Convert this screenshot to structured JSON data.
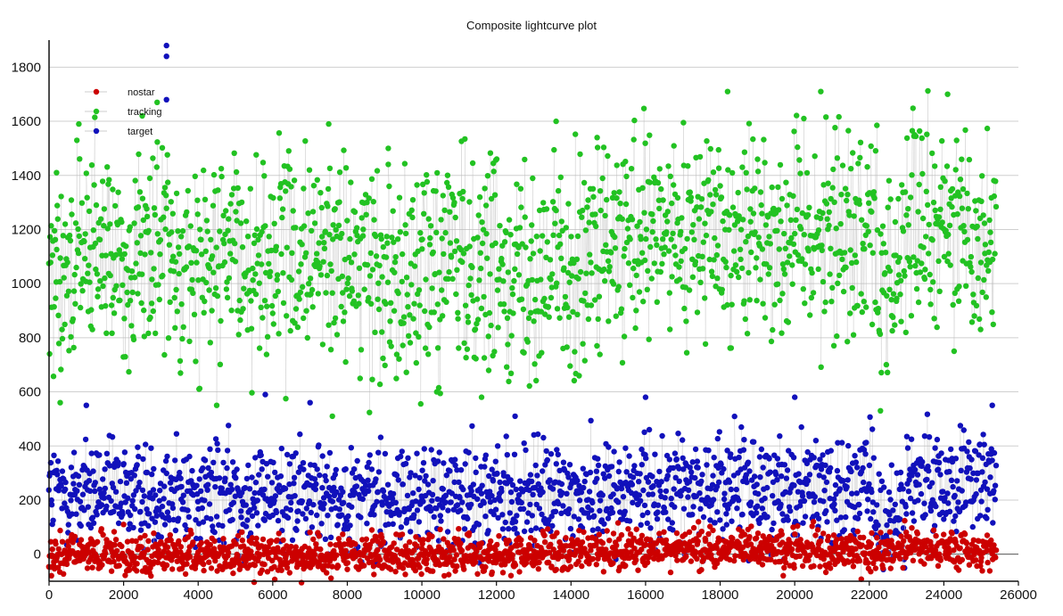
{
  "chart_data": {
    "type": "scatter",
    "title": "Composite lightcurve plot",
    "xlabel": "",
    "ylabel": "",
    "xlim": [
      0,
      26000
    ],
    "ylim": [
      -100,
      1900
    ],
    "x_ticks": [
      0,
      2000,
      4000,
      6000,
      8000,
      10000,
      12000,
      14000,
      16000,
      18000,
      20000,
      22000,
      24000,
      26000
    ],
    "y_ticks": [
      0,
      200,
      400,
      600,
      800,
      1000,
      1200,
      1400,
      1600,
      1800
    ],
    "grid": "horizontal",
    "legend_position": "top-left",
    "x_range_points": [
      0,
      25400
    ],
    "series": [
      {
        "name": "nostar",
        "color": "#cc0000",
        "profile": [
          [
            0,
            0
          ],
          [
            4000,
            0
          ],
          [
            8000,
            -5
          ],
          [
            12000,
            0
          ],
          [
            16000,
            15
          ],
          [
            20000,
            20
          ],
          [
            22000,
            5
          ],
          [
            23500,
            30
          ],
          [
            25400,
            10
          ]
        ],
        "spread": 35,
        "highlights": [
          [
            10600,
            -80
          ],
          [
            2000,
            110
          ],
          [
            20500,
            120
          ]
        ]
      },
      {
        "name": "tracking",
        "color": "#22c222",
        "profile": [
          [
            0,
            1080
          ],
          [
            2000,
            1110
          ],
          [
            4000,
            1100
          ],
          [
            6000,
            1090
          ],
          [
            8000,
            1080
          ],
          [
            10000,
            1070
          ],
          [
            12000,
            1080
          ],
          [
            14000,
            1060
          ],
          [
            15500,
            1120
          ],
          [
            17000,
            1180
          ],
          [
            19000,
            1200
          ],
          [
            21000,
            1190
          ],
          [
            22000,
            1200
          ],
          [
            22500,
            1000
          ],
          [
            23000,
            1200
          ],
          [
            25400,
            1170
          ]
        ],
        "spread": 190,
        "highlights": [
          [
            200,
            1410
          ],
          [
            300,
            560
          ],
          [
            800,
            1590
          ],
          [
            2500,
            1620
          ],
          [
            2900,
            1670
          ],
          [
            7500,
            1590
          ],
          [
            9100,
            1500
          ],
          [
            13600,
            1600
          ],
          [
            14700,
            1540
          ],
          [
            18200,
            1710
          ],
          [
            20700,
            1710
          ],
          [
            24100,
            1700
          ],
          [
            22300,
            530
          ],
          [
            11600,
            580
          ],
          [
            7600,
            510
          ],
          [
            10400,
            600
          ]
        ]
      },
      {
        "name": "target",
        "color": "#1111bb",
        "profile": [
          [
            0,
            220
          ],
          [
            3000,
            230
          ],
          [
            6000,
            220
          ],
          [
            10000,
            210
          ],
          [
            14000,
            220
          ],
          [
            16000,
            240
          ],
          [
            20000,
            250
          ],
          [
            22000,
            250
          ],
          [
            22200,
            130
          ],
          [
            22500,
            60
          ],
          [
            23000,
            250
          ],
          [
            25400,
            260
          ]
        ],
        "spread": 95,
        "highlights": [
          [
            3150,
            1880
          ],
          [
            3150,
            1840
          ],
          [
            3150,
            1680
          ],
          [
            5800,
            590
          ],
          [
            7000,
            560
          ],
          [
            16000,
            580
          ],
          [
            20000,
            580
          ],
          [
            25300,
            550
          ],
          [
            1000,
            550
          ],
          [
            12500,
            510
          ]
        ]
      }
    ]
  }
}
